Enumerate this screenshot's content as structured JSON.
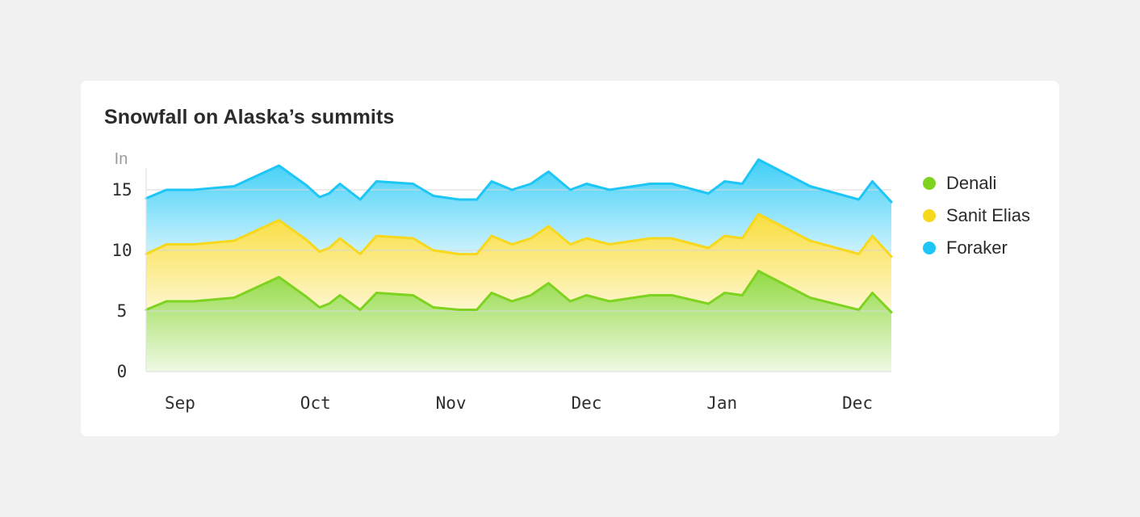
{
  "chart_data": {
    "type": "area",
    "stacked": true,
    "title": "Snowfall on Alaska’s summits",
    "ylabel": "In",
    "ylim": [
      0,
      17
    ],
    "yticks": [
      0,
      5,
      10,
      15
    ],
    "xlim": [
      0,
      55
    ],
    "month_ticks": [
      {
        "label": "Sep",
        "pos": 2.5
      },
      {
        "label": "Oct",
        "pos": 12.5
      },
      {
        "label": "Nov",
        "pos": 22.5
      },
      {
        "label": "Dec",
        "pos": 32.5
      },
      {
        "label": "Jan",
        "pos": 42.5
      },
      {
        "label": "Dec",
        "pos": 52.5
      }
    ],
    "x": [
      0,
      1.5,
      3.5,
      6.5,
      9.8,
      11.8,
      12.8,
      13.5,
      14.3,
      15.8,
      17.0,
      19.7,
      21.2,
      23.1,
      24.4,
      25.5,
      27.0,
      28.4,
      29.7,
      31.3,
      32.5,
      34.2,
      37.2,
      38.8,
      41.5,
      42.7,
      44.0,
      45.2,
      49.0,
      52.6,
      53.6,
      55.0
    ],
    "series": [
      {
        "name": "Denali",
        "color": "#7ed321",
        "values": [
          5.1,
          5.8,
          5.8,
          6.1,
          7.8,
          6.2,
          5.3,
          5.6,
          6.3,
          5.1,
          6.5,
          6.3,
          5.3,
          5.1,
          5.1,
          6.5,
          5.8,
          6.3,
          7.3,
          5.8,
          6.3,
          5.8,
          6.3,
          6.3,
          5.6,
          6.5,
          6.3,
          8.3,
          6.1,
          5.1,
          6.5,
          4.9
        ]
      },
      {
        "name": "Sanit Elias",
        "color": "#f8d81c",
        "values": [
          4.6,
          4.7,
          4.7,
          4.7,
          4.7,
          4.7,
          4.6,
          4.6,
          4.7,
          4.6,
          4.7,
          4.7,
          4.7,
          4.6,
          4.6,
          4.7,
          4.7,
          4.7,
          4.7,
          4.7,
          4.7,
          4.7,
          4.7,
          4.7,
          4.6,
          4.7,
          4.7,
          4.7,
          4.7,
          4.6,
          4.7,
          4.6
        ]
      },
      {
        "name": "Foraker",
        "color": "#1dc6f5",
        "values": [
          4.6,
          4.5,
          4.5,
          4.5,
          4.5,
          4.5,
          4.5,
          4.5,
          4.5,
          4.5,
          4.5,
          4.5,
          4.5,
          4.5,
          4.5,
          4.5,
          4.5,
          4.5,
          4.5,
          4.5,
          4.5,
          4.5,
          4.5,
          4.5,
          4.5,
          4.5,
          4.5,
          4.5,
          4.5,
          4.5,
          4.5,
          4.5
        ]
      }
    ],
    "legend": "right",
    "grid": true
  }
}
